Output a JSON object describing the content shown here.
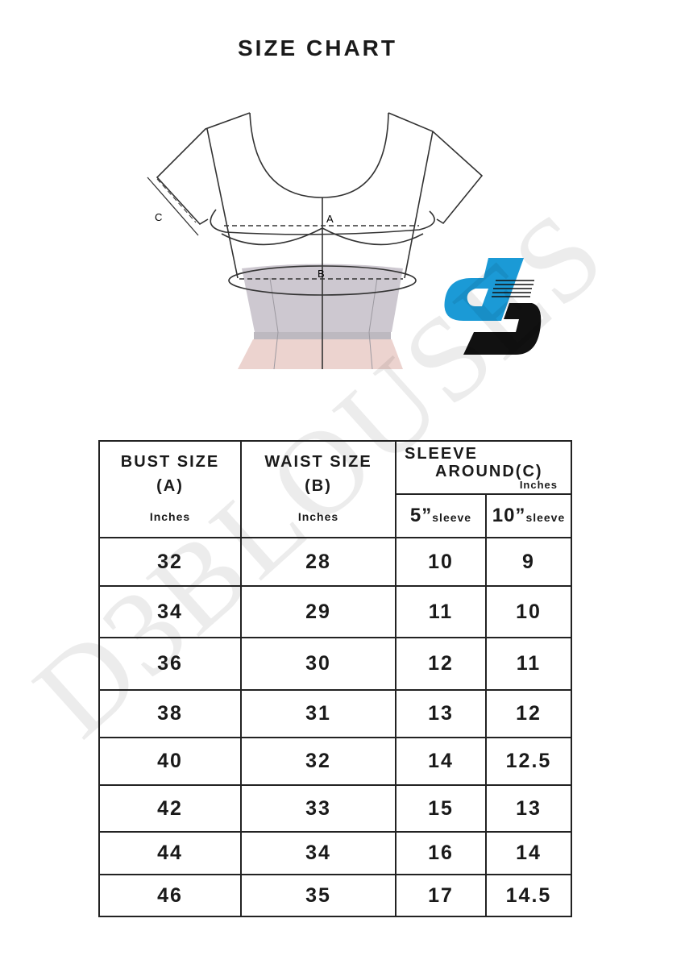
{
  "title": "SIZE CHART",
  "diagram": {
    "label_a": "A",
    "label_b": "B",
    "label_c": "C"
  },
  "logo": {
    "text": "DS",
    "colors": {
      "blue": "#1b9ad6",
      "black": "#111111"
    }
  },
  "watermark": "D3BLOUSES",
  "table": {
    "headers": {
      "bust": {
        "label": "BUST SIZE",
        "code": "(A)",
        "unit": "Inches"
      },
      "waist": {
        "label": "WAIST SIZE",
        "code": "(B)",
        "unit": "Inches"
      },
      "sleeve": {
        "label_line1": "SLEEVE",
        "label_line2": "AROUND",
        "code": "(C)",
        "unit": "Inches"
      },
      "sleeve_5": {
        "value": "5”",
        "suffix": "sleeve"
      },
      "sleeve_10": {
        "value": "10”",
        "suffix": "sleeve"
      }
    },
    "rows": [
      [
        "32",
        "28",
        "10",
        "9"
      ],
      [
        "34",
        "29",
        "11",
        "10"
      ],
      [
        "36",
        "30",
        "12",
        "11"
      ],
      [
        "38",
        "31",
        "13",
        "12"
      ],
      [
        "40",
        "32",
        "14",
        "12.5"
      ],
      [
        "42",
        "33",
        "15",
        "13"
      ],
      [
        "44",
        "34",
        "16",
        "14"
      ],
      [
        "46",
        "35",
        "17",
        "14.5"
      ]
    ]
  }
}
